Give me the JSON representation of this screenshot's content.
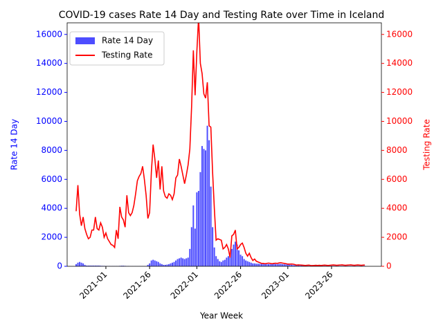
{
  "chart_data": {
    "type": "bar-line",
    "title": "COVID-19 cases Rate 14 Day and Testing Rate over Time in Iceland",
    "x_label": "Year Week",
    "y_label": "Rate 14 Day",
    "y2_label": "Testing Rate",
    "categories": [
      null,
      null,
      null,
      null,
      null,
      null,
      null,
      null,
      null,
      null,
      null,
      null,
      null,
      null,
      null,
      null,
      null,
      "2021-01",
      null,
      null,
      null,
      null,
      null,
      null,
      null,
      null,
      null,
      null,
      null,
      null,
      null,
      null,
      null,
      null,
      null,
      null,
      null,
      null,
      null,
      null,
      null,
      null,
      "2021-26",
      null,
      null,
      null,
      null,
      null,
      null,
      null,
      null,
      null,
      null,
      null,
      null,
      null,
      null,
      null,
      null,
      null,
      null,
      null,
      null,
      null,
      null,
      null,
      null,
      null,
      null,
      "2022-01",
      null,
      null,
      null,
      null,
      null,
      null,
      null,
      null,
      null,
      null,
      null,
      null,
      null,
      null,
      null,
      null,
      null,
      null,
      null,
      null,
      null,
      null,
      null,
      null,
      "2022-26",
      null,
      null,
      null,
      null,
      null,
      null,
      null,
      null,
      null,
      null,
      null,
      null,
      null,
      null,
      null,
      null,
      null,
      null,
      null,
      null,
      null,
      null,
      null,
      null,
      null,
      null,
      "2023-01",
      null,
      null,
      null,
      null,
      null,
      null,
      null,
      null,
      null,
      null,
      null,
      null,
      null,
      null,
      null,
      null,
      null,
      null,
      null,
      null,
      null,
      null,
      null,
      null,
      "2023-26",
      null,
      null,
      null,
      null,
      null,
      null,
      null,
      null,
      null,
      null,
      null,
      null,
      null,
      null,
      null,
      null,
      null,
      null,
      null
    ],
    "series": [
      {
        "name": "Rate 14 Day",
        "type": "bar",
        "color": "#4d4dff",
        "axis": "y",
        "values": [
          150,
          250,
          300,
          250,
          200,
          100,
          50,
          50,
          50,
          50,
          50,
          50,
          50,
          50,
          40,
          30,
          30,
          20,
          20,
          20,
          20,
          20,
          20,
          20,
          20,
          30,
          40,
          40,
          30,
          20,
          20,
          10,
          10,
          10,
          10,
          10,
          10,
          10,
          10,
          10,
          10,
          100,
          200,
          400,
          450,
          400,
          350,
          300,
          200,
          150,
          100,
          100,
          120,
          150,
          200,
          250,
          300,
          400,
          500,
          550,
          600,
          550,
          500,
          550,
          600,
          1200,
          2700,
          4200,
          2600,
          5100,
          5200,
          6500,
          8300,
          8100,
          8000,
          9700,
          8700,
          5500,
          2700,
          1300,
          700,
          500,
          350,
          300,
          400,
          450,
          600,
          700,
          900,
          1200,
          1500,
          1700,
          1500,
          1100,
          800,
          700,
          500,
          400,
          350,
          300,
          250,
          200,
          200,
          180,
          180,
          170,
          160,
          160,
          150,
          150,
          150,
          150,
          160,
          170,
          150,
          150,
          160,
          170,
          150,
          140,
          130,
          120,
          110,
          100,
          90,
          80,
          70,
          60,
          60,
          50,
          50,
          40,
          40,
          30,
          30,
          30,
          30,
          30,
          30,
          30,
          30,
          30,
          30,
          30,
          30,
          30,
          30,
          30,
          30,
          30,
          30,
          30,
          30,
          30,
          30,
          30,
          30,
          30,
          30,
          30,
          30,
          30,
          30,
          30,
          30,
          30
        ]
      },
      {
        "name": "Testing Rate",
        "type": "line",
        "color": "#ff0000",
        "axis": "y2",
        "values": [
          3800,
          5600,
          3600,
          2800,
          3400,
          2600,
          2200,
          1900,
          2000,
          2500,
          2500,
          3400,
          2600,
          2500,
          3000,
          2700,
          2000,
          2300,
          1900,
          1700,
          1500,
          1450,
          1300,
          2500,
          1900,
          4100,
          3400,
          3200,
          2700,
          4900,
          3700,
          3500,
          3700,
          4200,
          5000,
          5900,
          6200,
          6400,
          6900,
          6000,
          4900,
          3300,
          3700,
          6500,
          8400,
          7400,
          6100,
          7300,
          5300,
          6900,
          5200,
          4800,
          4700,
          5000,
          4900,
          4600,
          5000,
          6100,
          6300,
          7400,
          6900,
          6300,
          5700,
          6300,
          7000,
          8100,
          11000,
          14900,
          11800,
          14800,
          17200,
          14000,
          13300,
          11900,
          11600,
          12700,
          9700,
          9600,
          6500,
          4000,
          1800,
          1900,
          1850,
          1800,
          1200,
          1300,
          1500,
          1200,
          600,
          2100,
          2200,
          2500,
          1200,
          1300,
          1500,
          1600,
          1300,
          900,
          700,
          900,
          600,
          400,
          500,
          350,
          300,
          250,
          200,
          200,
          180,
          200,
          220,
          200,
          180,
          200,
          210,
          200,
          230,
          250,
          220,
          200,
          180,
          150,
          150,
          160,
          150,
          120,
          80,
          100,
          90,
          80,
          70,
          60,
          70,
          80,
          60,
          50,
          60,
          70,
          60,
          70,
          60,
          70,
          80,
          70,
          60,
          70,
          80,
          90,
          80,
          70,
          80,
          90,
          100,
          80,
          70,
          80,
          90,
          100,
          80,
          70,
          80,
          90,
          80,
          70,
          80,
          90
        ]
      }
    ],
    "ylim": [
      0,
      16800
    ],
    "yticks": [
      0,
      2000,
      4000,
      6000,
      8000,
      10000,
      12000,
      14000,
      16000
    ],
    "y2lim": [
      0,
      16800
    ],
    "y2ticks": [
      0,
      2000,
      4000,
      6000,
      8000,
      10000,
      12000,
      14000,
      16000
    ],
    "y_color": "#0000ff",
    "y2_color": "#ff0000",
    "legend": "upper left",
    "grid": false
  }
}
